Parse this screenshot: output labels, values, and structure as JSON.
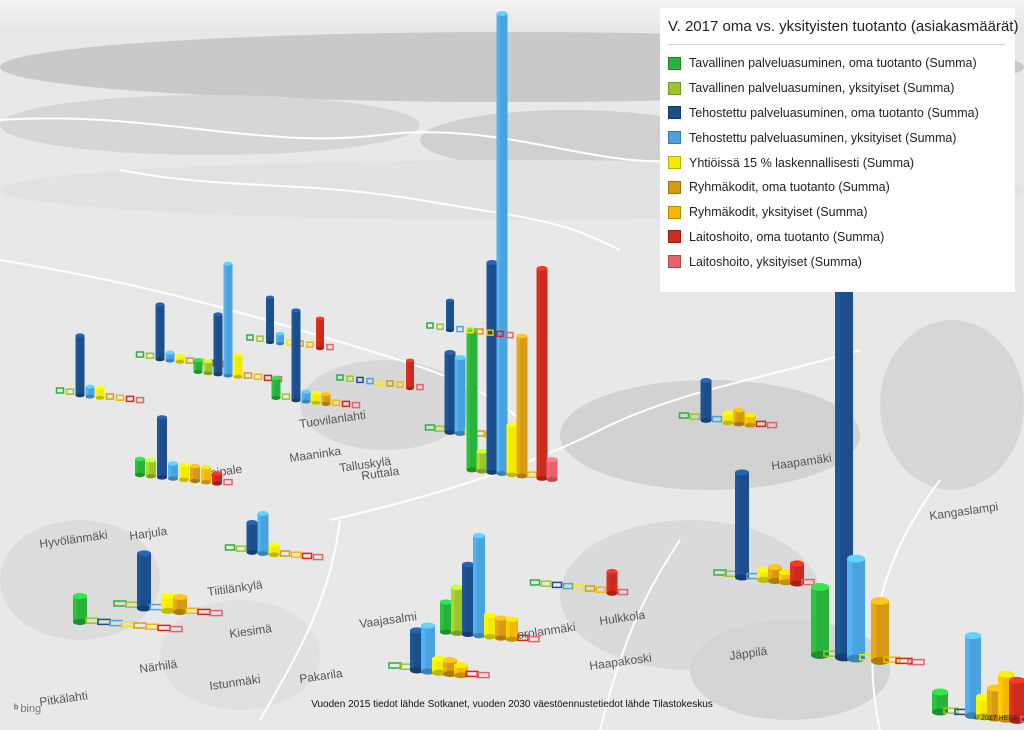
{
  "legend": {
    "title": "V. 2017 oma vs. yksityisten tuotanto (asiakasmäärät)",
    "items": [
      {
        "label": "Tavallinen palveluasuminen, oma tuotanto (Summa)",
        "color": "#27b23a"
      },
      {
        "label": "Tavallinen palveluasuminen, yksityiset (Summa)",
        "color": "#9cc52a"
      },
      {
        "label": "Tehostettu palveluasuminen, oma tuotanto (Summa)",
        "color": "#1c4e8c"
      },
      {
        "label": "Tehostettu palveluasuminen, yksityiset (Summa)",
        "color": "#4aa3df"
      },
      {
        "label": "Yhtiöissä 15 % laskennallisesti (Summa)",
        "color": "#f2ea00"
      },
      {
        "label": "Ryhmäkodit, oma tuotanto (Summa)",
        "color": "#d59a13"
      },
      {
        "label": "Ryhmäkodit, yksityiset (Summa)",
        "color": "#f5b800"
      },
      {
        "label": "Laitoshoito, oma tuotanto (Summa)",
        "color": "#cc2a1c"
      },
      {
        "label": "Laitoshoito, yksityiset (Summa)",
        "color": "#e8606a"
      }
    ]
  },
  "place_names": [
    "Taipale",
    "Maaninka",
    "Talluskylä",
    "Ruttala",
    "Tuovilanlahti",
    "Haapamäki",
    "Kangaslampi",
    "Harjula",
    "Kiesimä",
    "Närhilä",
    "Istunmäki",
    "Pakarila",
    "Haapakoski",
    "Porolanmäki",
    "Tiitilänkylä",
    "Hyvölänmäki",
    "Vaajasalmi",
    "Hulkkola",
    "Jäppilä",
    "Pitkälahti"
  ],
  "attribution": "Vuoden 2015 tiedot lähde Sotkanet, vuoden 2030 väestöennustetiedot lähde Tilastokeskus",
  "bing_label": "bing",
  "copyright": "© 2017 HERE"
}
